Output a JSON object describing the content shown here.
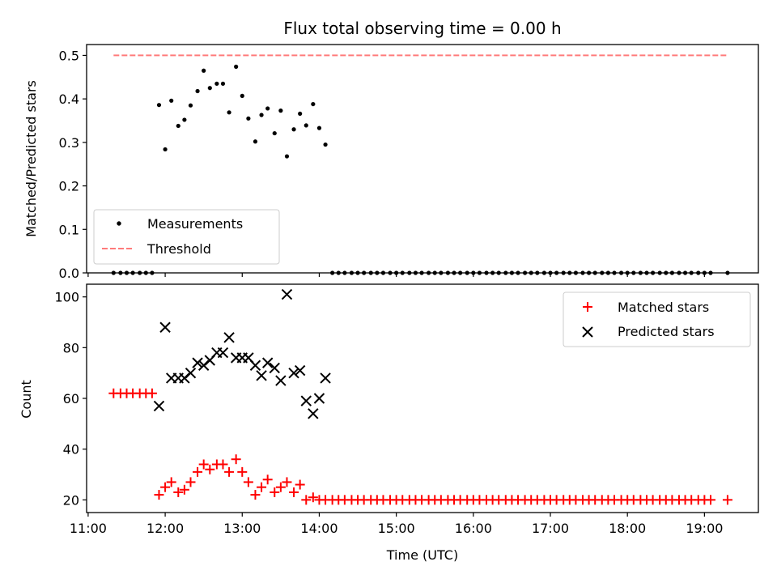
{
  "chart_data": [
    {
      "type": "scatter",
      "title": "Flux total observing time = 0.00 h",
      "ylabel": "Matched/Predicted stars",
      "xlabel": "",
      "xlim": [
        10.98,
        19.7
      ],
      "ylim": [
        0,
        0.525
      ],
      "yticks": [
        0.0,
        0.1,
        0.2,
        0.3,
        0.4,
        0.5
      ],
      "ytick_labels": [
        "0.0",
        "0.1",
        "0.2",
        "0.3",
        "0.4",
        "0.5"
      ],
      "grid": false,
      "legend_position": "lower-left",
      "series": [
        {
          "name": "Measurements",
          "marker": "dot",
          "color": "#000000",
          "x": [
            11.33,
            11.42,
            11.5,
            11.58,
            11.67,
            11.75,
            11.83,
            11.92,
            12.0,
            12.08,
            12.17,
            12.25,
            12.33,
            12.42,
            12.5,
            12.58,
            12.67,
            12.75,
            12.83,
            12.92,
            13.0,
            13.08,
            13.17,
            13.25,
            13.33,
            13.42,
            13.5,
            13.58,
            13.67,
            13.75,
            13.83,
            13.92,
            14.0,
            14.08,
            14.17,
            14.25,
            14.33,
            14.42,
            14.5,
            14.58,
            14.67,
            14.75,
            14.83,
            14.92,
            15.0,
            15.08,
            15.17,
            15.25,
            15.33,
            15.42,
            15.5,
            15.58,
            15.67,
            15.75,
            15.83,
            15.92,
            16.0,
            16.08,
            16.17,
            16.25,
            16.33,
            16.42,
            16.5,
            16.58,
            16.67,
            16.75,
            16.83,
            16.92,
            17.0,
            17.08,
            17.17,
            17.25,
            17.33,
            17.42,
            17.5,
            17.58,
            17.67,
            17.75,
            17.83,
            17.92,
            18.0,
            18.08,
            18.17,
            18.25,
            18.33,
            18.42,
            18.5,
            18.58,
            18.67,
            18.75,
            18.83,
            18.92,
            19.0,
            19.08,
            19.3
          ],
          "y": [
            0,
            0,
            0,
            0,
            0,
            0,
            0,
            0.386,
            0.284,
            0.396,
            0.338,
            0.352,
            0.385,
            0.418,
            0.465,
            0.425,
            0.435,
            0.435,
            0.369,
            0.474,
            0.407,
            0.355,
            0.302,
            0.363,
            0.378,
            0.321,
            0.373,
            0.268,
            0.33,
            0.366,
            0.339,
            0.388,
            0.333,
            0.295,
            0,
            0,
            0,
            0,
            0,
            0,
            0,
            0,
            0,
            0,
            0,
            0,
            0,
            0,
            0,
            0,
            0,
            0,
            0,
            0,
            0,
            0,
            0,
            0,
            0,
            0,
            0,
            0,
            0,
            0,
            0,
            0,
            0,
            0,
            0,
            0,
            0,
            0,
            0,
            0,
            0,
            0,
            0,
            0,
            0,
            0,
            0,
            0,
            0,
            0,
            0,
            0,
            0,
            0,
            0,
            0,
            0,
            0,
            0,
            0,
            0
          ]
        },
        {
          "name": "Threshold",
          "marker": "dashed-line",
          "color": "#ff7b7b",
          "x": [
            11.33,
            19.3
          ],
          "y": [
            0.5,
            0.5
          ]
        }
      ]
    },
    {
      "type": "scatter",
      "title": "",
      "ylabel": "Count",
      "xlabel": "Time (UTC)",
      "xlim": [
        10.98,
        19.7
      ],
      "ylim": [
        15,
        105
      ],
      "yticks": [
        20,
        40,
        60,
        80,
        100
      ],
      "ytick_labels": [
        "20",
        "40",
        "60",
        "80",
        "100"
      ],
      "xticks": [
        11,
        12,
        13,
        14,
        15,
        16,
        17,
        18,
        19
      ],
      "xtick_labels": [
        "11:00",
        "12:00",
        "13:00",
        "14:00",
        "15:00",
        "16:00",
        "17:00",
        "18:00",
        "19:00"
      ],
      "grid": false,
      "legend_position": "upper-right",
      "series": [
        {
          "name": "Matched stars",
          "marker": "plus",
          "color": "#ff0000",
          "x": [
            11.33,
            11.42,
            11.5,
            11.58,
            11.67,
            11.75,
            11.83,
            11.92,
            12.0,
            12.08,
            12.17,
            12.25,
            12.33,
            12.42,
            12.5,
            12.58,
            12.67,
            12.75,
            12.83,
            12.92,
            13.0,
            13.08,
            13.17,
            13.25,
            13.33,
            13.42,
            13.5,
            13.58,
            13.67,
            13.75,
            13.83,
            13.92,
            14.0,
            14.08,
            14.17,
            14.25,
            14.33,
            14.42,
            14.5,
            14.58,
            14.67,
            14.75,
            14.83,
            14.92,
            15.0,
            15.08,
            15.17,
            15.25,
            15.33,
            15.42,
            15.5,
            15.58,
            15.67,
            15.75,
            15.83,
            15.92,
            16.0,
            16.08,
            16.17,
            16.25,
            16.33,
            16.42,
            16.5,
            16.58,
            16.67,
            16.75,
            16.83,
            16.92,
            17.0,
            17.08,
            17.17,
            17.25,
            17.33,
            17.42,
            17.5,
            17.58,
            17.67,
            17.75,
            17.83,
            17.92,
            18.0,
            18.08,
            18.17,
            18.25,
            18.33,
            18.42,
            18.5,
            18.58,
            18.67,
            18.75,
            18.83,
            18.92,
            19.0,
            19.08,
            19.3
          ],
          "y": [
            62,
            62,
            62,
            62,
            62,
            62,
            62,
            22,
            25,
            27,
            23,
            24,
            27,
            31,
            34,
            32,
            34,
            34,
            31,
            36,
            31,
            27,
            22,
            25,
            28,
            23,
            25,
            27,
            23,
            26,
            20,
            21,
            20,
            20,
            20,
            20,
            20,
            20,
            20,
            20,
            20,
            20,
            20,
            20,
            20,
            20,
            20,
            20,
            20,
            20,
            20,
            20,
            20,
            20,
            20,
            20,
            20,
            20,
            20,
            20,
            20,
            20,
            20,
            20,
            20,
            20,
            20,
            20,
            20,
            20,
            20,
            20,
            20,
            20,
            20,
            20,
            20,
            20,
            20,
            20,
            20,
            20,
            20,
            20,
            20,
            20,
            20,
            20,
            20,
            20,
            20,
            20,
            20,
            20,
            20
          ]
        },
        {
          "name": "Predicted stars",
          "marker": "x",
          "color": "#000000",
          "x": [
            11.92,
            12.0,
            12.08,
            12.17,
            12.25,
            12.33,
            12.42,
            12.5,
            12.58,
            12.67,
            12.75,
            12.83,
            12.92,
            13.0,
            13.08,
            13.17,
            13.25,
            13.33,
            13.42,
            13.5,
            13.58,
            13.67,
            13.75,
            13.83,
            13.92,
            14.0,
            14.08
          ],
          "y": [
            57,
            88,
            68,
            68,
            68,
            70,
            74,
            73,
            75,
            78,
            78,
            84,
            76,
            76,
            76,
            73,
            69,
            74,
            72,
            67,
            101,
            70,
            71,
            59,
            54,
            60,
            68
          ]
        }
      ]
    }
  ]
}
